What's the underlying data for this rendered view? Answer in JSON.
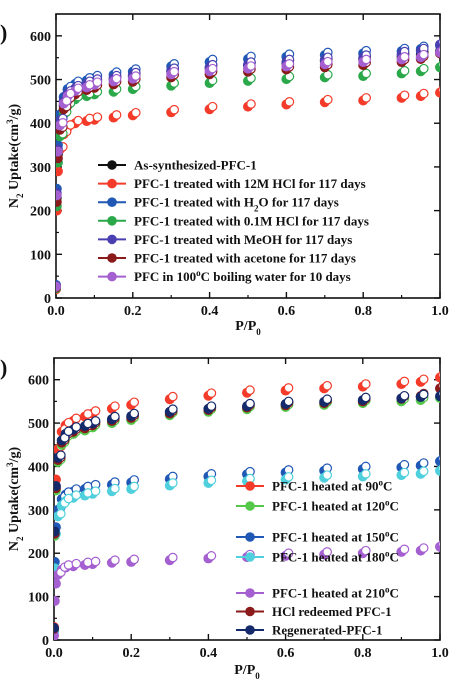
{
  "chart_data": [
    {
      "type": "scatter",
      "panel_letter": ")",
      "xlabel": "P/P",
      "xlabel_sub": "0",
      "ylabel_pre": "N",
      "ylabel_sub": "2",
      "ylabel_mid": " Uptake(cm",
      "ylabel_sup": "3",
      "ylabel_post": "/g)",
      "xlim": [
        0.0,
        1.0
      ],
      "ylim": [
        0,
        650
      ],
      "xticks": [
        "0.0",
        "0.2",
        "0.4",
        "0.6",
        "0.8",
        "1.0"
      ],
      "yticks": [
        "0",
        "100",
        "200",
        "300",
        "400",
        "500",
        "600"
      ],
      "legend_position": "bottom-right",
      "series": [
        {
          "name": "As-synthesized-PFC-1",
          "color": "#111111",
          "x": [
            0.0,
            0.002,
            0.005,
            0.01,
            0.02,
            0.03,
            0.05,
            0.08,
            0.1,
            0.15,
            0.2,
            0.3,
            0.4,
            0.5,
            0.6,
            0.7,
            0.8,
            0.9,
            0.95,
            1.0
          ],
          "y": [
            25,
            230,
            330,
            390,
            440,
            460,
            475,
            485,
            492,
            500,
            507,
            518,
            526,
            532,
            537,
            542,
            546,
            552,
            557,
            565
          ]
        },
        {
          "name": "PFC-1 treated with 12M HCl for 117 days",
          "color": "#f43b2a",
          "x": [
            0.0,
            0.002,
            0.005,
            0.01,
            0.02,
            0.03,
            0.05,
            0.08,
            0.1,
            0.15,
            0.2,
            0.3,
            0.4,
            0.5,
            0.6,
            0.7,
            0.8,
            0.9,
            0.95,
            1.0
          ],
          "y": [
            20,
            200,
            290,
            340,
            375,
            390,
            400,
            405,
            408,
            413,
            418,
            425,
            432,
            438,
            443,
            448,
            452,
            458,
            462,
            470
          ]
        },
        {
          "name": "PFC-1 treated with H",
          "name_sub": "2",
          "name_post": "O for 117 days",
          "color": "#2158b6",
          "x": [
            0.0,
            0.002,
            0.005,
            0.01,
            0.02,
            0.03,
            0.05,
            0.08,
            0.1,
            0.15,
            0.2,
            0.3,
            0.4,
            0.5,
            0.6,
            0.7,
            0.8,
            0.9,
            0.95,
            1.0
          ],
          "y": [
            30,
            250,
            350,
            420,
            460,
            478,
            490,
            498,
            503,
            511,
            518,
            530,
            540,
            547,
            552,
            556,
            560,
            565,
            570,
            578
          ]
        },
        {
          "name": "PFC-1 treated with 0.1M HCl for 117 days",
          "color": "#2aa84a",
          "x": [
            0.0,
            0.002,
            0.005,
            0.01,
            0.02,
            0.03,
            0.05,
            0.08,
            0.1,
            0.15,
            0.2,
            0.3,
            0.4,
            0.5,
            0.6,
            0.7,
            0.8,
            0.9,
            0.95,
            1.0
          ],
          "y": [
            22,
            210,
            310,
            370,
            420,
            440,
            455,
            462,
            466,
            472,
            478,
            486,
            492,
            497,
            501,
            505,
            508,
            514,
            519,
            528
          ]
        },
        {
          "name": "PFC-1 treated with MeOH for 117 days",
          "color": "#4a3fb0",
          "x": [
            0.0,
            0.002,
            0.005,
            0.01,
            0.02,
            0.03,
            0.05,
            0.08,
            0.1,
            0.15,
            0.2,
            0.3,
            0.4,
            0.5,
            0.6,
            0.7,
            0.8,
            0.9,
            0.95,
            1.0
          ],
          "y": [
            28,
            240,
            340,
            405,
            450,
            468,
            480,
            490,
            495,
            503,
            510,
            520,
            528,
            534,
            540,
            545,
            550,
            558,
            565,
            580
          ]
        },
        {
          "name": "PFC-1 treated with acetone for 117 days",
          "color": "#8b1a1a",
          "x": [
            0.0,
            0.002,
            0.005,
            0.01,
            0.02,
            0.03,
            0.05,
            0.08,
            0.1,
            0.15,
            0.2,
            0.3,
            0.4,
            0.5,
            0.6,
            0.7,
            0.8,
            0.9,
            0.95,
            1.0
          ],
          "y": [
            24,
            220,
            320,
            385,
            432,
            452,
            466,
            476,
            481,
            489,
            495,
            505,
            512,
            518,
            523,
            528,
            533,
            540,
            547,
            560
          ]
        },
        {
          "name": "PFC in 100",
          "name_sup": "o",
          "name_post": "C boiling water for 10 days",
          "color": "#a45fd0",
          "x": [
            0.0,
            0.002,
            0.005,
            0.01,
            0.02,
            0.03,
            0.05,
            0.08,
            0.1,
            0.15,
            0.2,
            0.3,
            0.4,
            0.5,
            0.6,
            0.7,
            0.8,
            0.9,
            0.95,
            1.0
          ],
          "y": [
            26,
            235,
            335,
            395,
            445,
            462,
            474,
            482,
            488,
            496,
            502,
            512,
            519,
            525,
            530,
            535,
            540,
            546,
            551,
            562
          ]
        }
      ]
    },
    {
      "type": "scatter",
      "panel_letter": ")",
      "xlabel": "P/P",
      "xlabel_sub": "0",
      "ylabel_pre": "N",
      "ylabel_sub": "2",
      "ylabel_mid": " Uptake(cm",
      "ylabel_sup": "3",
      "ylabel_post": "/g)",
      "xlim": [
        0.0,
        1.0
      ],
      "ylim": [
        0,
        650
      ],
      "xticks": [
        "0.0",
        "0.2",
        "0.4",
        "0.6",
        "0.8",
        "1.0"
      ],
      "yticks": [
        "0",
        "100",
        "200",
        "300",
        "400",
        "500",
        "600"
      ],
      "legend_groups": [
        {
          "position": "upper-right",
          "items": [
            0,
            1
          ]
        },
        {
          "position": "middle-right",
          "items": [
            2,
            3
          ]
        },
        {
          "position": "bottom-right",
          "items": [
            4,
            5,
            6
          ]
        }
      ],
      "series": [
        {
          "name": "PFC-1 heated at 90",
          "name_sup": "o",
          "name_post": "C",
          "color": "#f43b2a",
          "x": [
            0.0,
            0.002,
            0.005,
            0.01,
            0.02,
            0.03,
            0.05,
            0.08,
            0.1,
            0.15,
            0.2,
            0.3,
            0.4,
            0.5,
            0.6,
            0.7,
            0.8,
            0.9,
            0.95,
            1.0
          ],
          "y": [
            30,
            260,
            370,
            440,
            480,
            495,
            505,
            515,
            522,
            533,
            542,
            555,
            563,
            570,
            575,
            580,
            584,
            590,
            595,
            605
          ]
        },
        {
          "name": "PFC-1 heated at 120",
          "name_sup": "o",
          "name_post": "C",
          "color": "#55c84a",
          "x": [
            0.0,
            0.002,
            0.005,
            0.01,
            0.02,
            0.03,
            0.05,
            0.08,
            0.1,
            0.15,
            0.2,
            0.3,
            0.4,
            0.5,
            0.6,
            0.7,
            0.8,
            0.9,
            0.95,
            1.0
          ],
          "y": [
            25,
            240,
            345,
            410,
            450,
            465,
            475,
            483,
            490,
            500,
            507,
            518,
            526,
            532,
            537,
            542,
            546,
            550,
            553,
            558
          ]
        },
        {
          "name": "PFC-1 heated at 150",
          "name_sup": "o",
          "name_post": "C",
          "color": "#2158b6",
          "x": [
            0.0,
            0.002,
            0.005,
            0.01,
            0.02,
            0.03,
            0.05,
            0.08,
            0.1,
            0.15,
            0.2,
            0.3,
            0.4,
            0.5,
            0.6,
            0.7,
            0.8,
            0.9,
            0.95,
            1.0
          ],
          "y": [
            20,
            180,
            260,
            300,
            325,
            335,
            342,
            348,
            352,
            358,
            363,
            371,
            377,
            382,
            386,
            390,
            394,
            398,
            402,
            412
          ]
        },
        {
          "name": "PFC-1 heated at 180",
          "name_sup": "o",
          "name_post": "C",
          "color": "#4fd0dc",
          "x": [
            0.0,
            0.002,
            0.005,
            0.01,
            0.02,
            0.03,
            0.05,
            0.08,
            0.1,
            0.15,
            0.2,
            0.3,
            0.4,
            0.5,
            0.6,
            0.7,
            0.8,
            0.9,
            0.95,
            1.0
          ],
          "y": [
            18,
            165,
            245,
            285,
            310,
            320,
            328,
            333,
            337,
            343,
            348,
            356,
            362,
            366,
            370,
            374,
            377,
            380,
            383,
            390
          ]
        },
        {
          "name": "PFC-1 heated at 210",
          "name_sup": "o",
          "name_post": "C",
          "color": "#a45fd0",
          "x": [
            0.0,
            0.002,
            0.005,
            0.01,
            0.02,
            0.03,
            0.05,
            0.08,
            0.1,
            0.15,
            0.2,
            0.3,
            0.4,
            0.5,
            0.6,
            0.7,
            0.8,
            0.9,
            0.95,
            1.0
          ],
          "y": [
            10,
            90,
            130,
            150,
            162,
            167,
            170,
            173,
            175,
            178,
            180,
            184,
            188,
            191,
            194,
            197,
            200,
            203,
            206,
            215
          ]
        },
        {
          "name": "HCl redeemed PFC-1",
          "color": "#8b1a1a",
          "x": [
            0.0,
            0.002,
            0.005,
            0.01,
            0.02,
            0.03,
            0.05,
            0.08,
            0.1,
            0.15,
            0.2,
            0.3,
            0.4,
            0.5,
            0.6,
            0.7,
            0.8,
            0.9,
            0.95,
            1.0
          ],
          "y": [
            26,
            245,
            350,
            415,
            455,
            470,
            480,
            488,
            495,
            505,
            512,
            522,
            530,
            536,
            541,
            546,
            550,
            556,
            562,
            580
          ]
        },
        {
          "name": "Regenerated-PFC-1",
          "color": "#152a6b",
          "x": [
            0.0,
            0.002,
            0.005,
            0.01,
            0.02,
            0.03,
            0.05,
            0.08,
            0.1,
            0.15,
            0.2,
            0.3,
            0.4,
            0.5,
            0.6,
            0.7,
            0.8,
            0.9,
            0.95,
            1.0
          ],
          "y": [
            28,
            250,
            355,
            420,
            460,
            475,
            485,
            493,
            499,
            509,
            516,
            526,
            533,
            539,
            544,
            549,
            553,
            557,
            560,
            562
          ]
        }
      ]
    }
  ]
}
